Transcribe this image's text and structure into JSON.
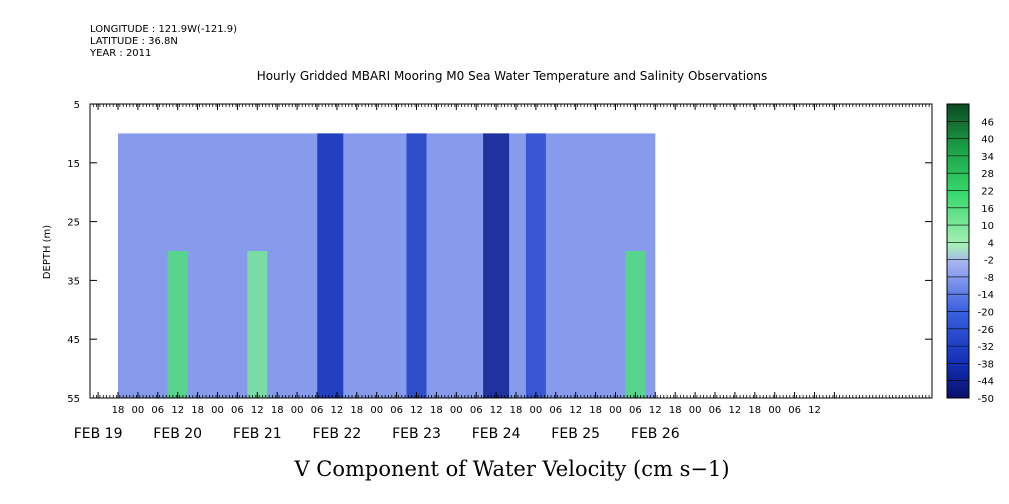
{
  "header": {
    "longitude": "LONGITUDE : 121.9W(-121.9)",
    "latitude": "LATITUDE : 36.8N",
    "year": "YEAR : 2011"
  },
  "chart_data": {
    "type": "heatmap",
    "title": "Hourly Gridded MBARI Mooring M0 Sea Water Temperature and Salinity Observations",
    "xlabel": "V Component of Water Velocity (cm s−1)",
    "ylabel": "DEPTH (m)",
    "ylim": [
      55,
      5
    ],
    "yticks": [
      5,
      15,
      25,
      35,
      45,
      55
    ],
    "x_hour_ticks": [
      "18",
      "00",
      "06",
      "12",
      "18",
      "00",
      "06",
      "12",
      "18",
      "00",
      "06",
      "12",
      "18",
      "00",
      "06",
      "12",
      "18",
      "00",
      "06",
      "12",
      "18",
      "00",
      "06",
      "12",
      "18",
      "00",
      "06",
      "12",
      "18",
      "00",
      "06",
      "12",
      "18",
      "00",
      "06",
      "12"
    ],
    "date_labels": [
      "FEB 19",
      "FEB 20",
      "FEB 21",
      "FEB 22",
      "FEB 23",
      "FEB 24",
      "FEB 25",
      "FEB 26"
    ],
    "colorbar": {
      "levels": [
        "46",
        "40",
        "34",
        "28",
        "22",
        "16",
        "10",
        "4",
        "-2",
        "-8",
        "-14",
        "-20",
        "-26",
        "-32",
        "-38",
        "-44",
        "-50"
      ],
      "range": [
        -50,
        52
      ],
      "colors": {
        "deep_blue": "#08106a",
        "blue": "#1a4ed8",
        "mid_blue": "#5b83e6",
        "pale_blue": "#aab5f2",
        "pale_green": "#9ef0b0",
        "green": "#3ddc6a",
        "deep_green": "#0b5a2a"
      }
    },
    "data_depth_range": [
      10,
      55
    ],
    "data_time_start": "FEB 19 18",
    "data_time_end": "FEB 26 12",
    "features": [
      {
        "time": "FEB 22 10",
        "value": -38
      },
      {
        "time": "FEB 23 12",
        "value": -32
      },
      {
        "time": "FEB 24 12",
        "value": -44
      },
      {
        "time": "FEB 25 00",
        "value": -28
      },
      {
        "time": "FEB 20 12",
        "value": 16
      },
      {
        "time": "FEB 21 12",
        "value": 10
      },
      {
        "time": "FEB 26 06",
        "value": 16
      }
    ]
  }
}
